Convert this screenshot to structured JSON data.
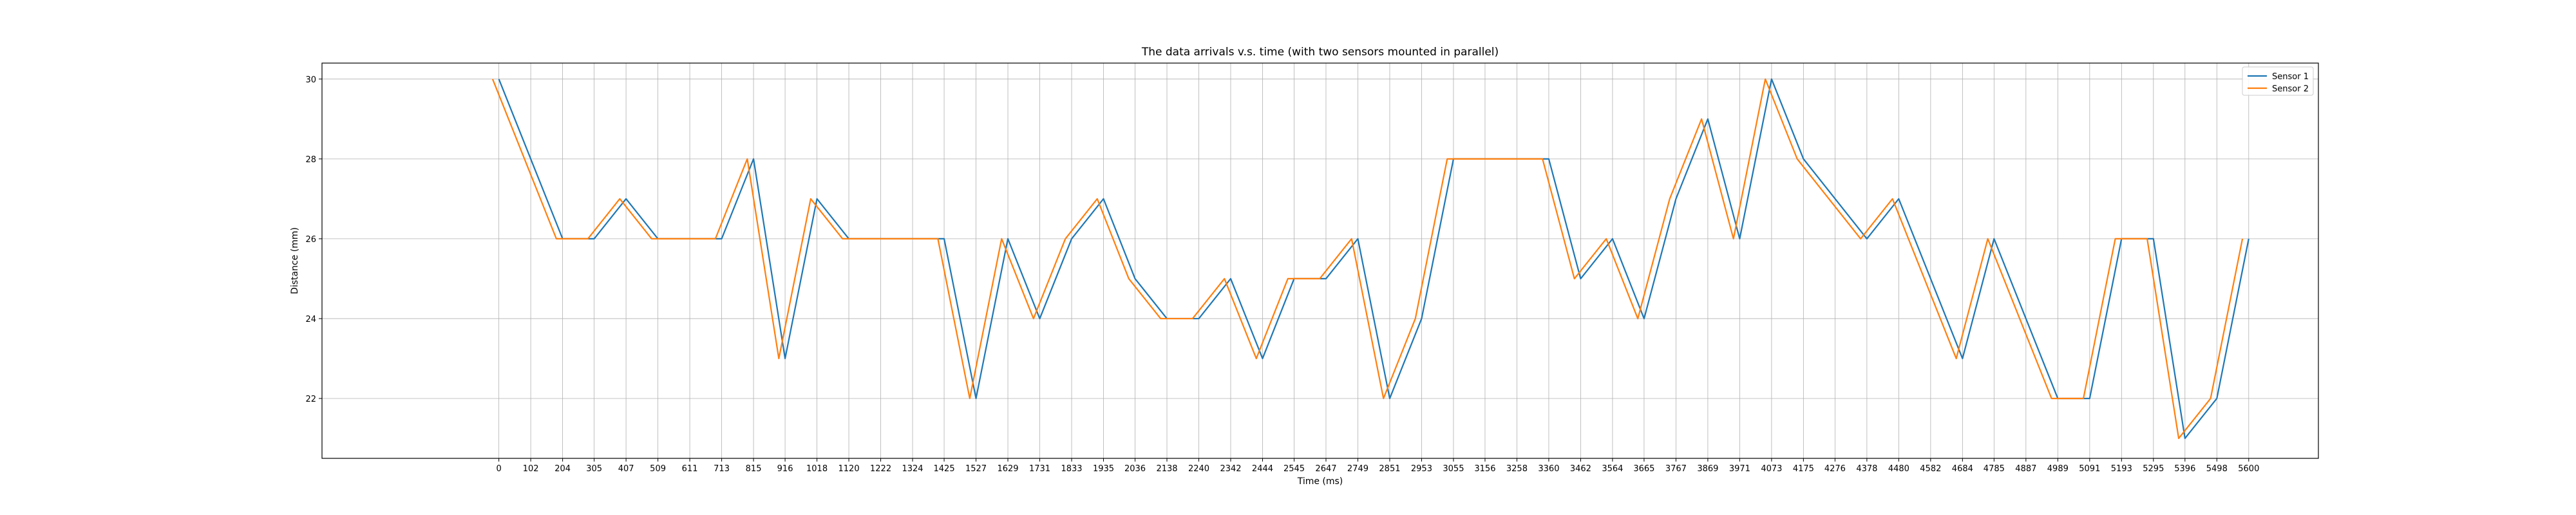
{
  "chart_data": {
    "type": "line",
    "title": "The data arrivals v.s. time (with two sensors mounted in parallel)",
    "xlabel": "Time (ms)",
    "ylabel": "Distance (mm)",
    "xlim": [
      -566,
      5823
    ],
    "ylim": [
      20.5,
      30.4
    ],
    "x_ticks": [
      0,
      102,
      204,
      305,
      407,
      509,
      611,
      713,
      815,
      916,
      1018,
      1120,
      1222,
      1324,
      1425,
      1527,
      1629,
      1731,
      1833,
      1935,
      2036,
      2138,
      2240,
      2342,
      2444,
      2545,
      2647,
      2749,
      2851,
      2953,
      3055,
      3156,
      3258,
      3360,
      3462,
      3564,
      3665,
      3767,
      3869,
      3971,
      4073,
      4175,
      4276,
      4378,
      4480,
      4582,
      4684,
      4785,
      4887,
      4989,
      5091,
      5193,
      5295,
      5396,
      5498,
      5600
    ],
    "y_ticks": [
      22,
      24,
      26,
      28,
      30
    ],
    "grid": true,
    "legend_position": "top-right",
    "series": [
      {
        "name": "Sensor 1",
        "color": "#1f77b4",
        "points": [
          [
            0,
            30
          ],
          [
            204,
            26
          ],
          [
            305,
            26
          ],
          [
            407,
            27
          ],
          [
            509,
            26
          ],
          [
            713,
            26
          ],
          [
            815,
            28
          ],
          [
            916,
            23
          ],
          [
            1018,
            27
          ],
          [
            1120,
            26
          ],
          [
            1425,
            26
          ],
          [
            1527,
            22
          ],
          [
            1629,
            26
          ],
          [
            1731,
            24
          ],
          [
            1833,
            26
          ],
          [
            1935,
            27
          ],
          [
            2036,
            25
          ],
          [
            2138,
            24
          ],
          [
            2240,
            24
          ],
          [
            2342,
            25
          ],
          [
            2444,
            23
          ],
          [
            2545,
            25
          ],
          [
            2647,
            25
          ],
          [
            2749,
            26
          ],
          [
            2851,
            22
          ],
          [
            2953,
            24
          ],
          [
            3055,
            28
          ],
          [
            3156,
            28
          ],
          [
            3360,
            28
          ],
          [
            3462,
            25
          ],
          [
            3564,
            26
          ],
          [
            3665,
            24
          ],
          [
            3767,
            27
          ],
          [
            3869,
            29
          ],
          [
            3971,
            26
          ],
          [
            4073,
            30
          ],
          [
            4175,
            28
          ],
          [
            4378,
            26
          ],
          [
            4480,
            27
          ],
          [
            4684,
            23
          ],
          [
            4785,
            26
          ],
          [
            4989,
            22
          ],
          [
            5091,
            22
          ],
          [
            5193,
            26
          ],
          [
            5295,
            26
          ],
          [
            5396,
            21
          ],
          [
            5498,
            22
          ],
          [
            5600,
            26
          ]
        ]
      },
      {
        "name": "Sensor 2",
        "color": "#ff7f0e",
        "points": [
          [
            0,
            30
          ],
          [
            204,
            26
          ],
          [
            305,
            26
          ],
          [
            407,
            27
          ],
          [
            509,
            26
          ],
          [
            713,
            26
          ],
          [
            815,
            28
          ],
          [
            916,
            23
          ],
          [
            1018,
            27
          ],
          [
            1120,
            26
          ],
          [
            1425,
            26
          ],
          [
            1527,
            22
          ],
          [
            1629,
            26
          ],
          [
            1731,
            24
          ],
          [
            1833,
            26
          ],
          [
            1935,
            27
          ],
          [
            2036,
            25
          ],
          [
            2138,
            24
          ],
          [
            2240,
            24
          ],
          [
            2342,
            25
          ],
          [
            2444,
            23
          ],
          [
            2545,
            25
          ],
          [
            2647,
            25
          ],
          [
            2749,
            26
          ],
          [
            2851,
            22
          ],
          [
            2953,
            24
          ],
          [
            3055,
            28
          ],
          [
            3156,
            28
          ],
          [
            3360,
            28
          ],
          [
            3462,
            25
          ],
          [
            3564,
            26
          ],
          [
            3665,
            24
          ],
          [
            3767,
            27
          ],
          [
            3869,
            29
          ],
          [
            3971,
            26
          ],
          [
            4073,
            30
          ],
          [
            4175,
            28
          ],
          [
            4378,
            26
          ],
          [
            4480,
            27
          ],
          [
            4684,
            23
          ],
          [
            4785,
            26
          ],
          [
            4989,
            22
          ],
          [
            5091,
            22
          ],
          [
            5193,
            26
          ],
          [
            5295,
            26
          ],
          [
            5396,
            21
          ],
          [
            5498,
            22
          ],
          [
            5600,
            26
          ]
        ],
        "x_offset": -20
      }
    ]
  }
}
